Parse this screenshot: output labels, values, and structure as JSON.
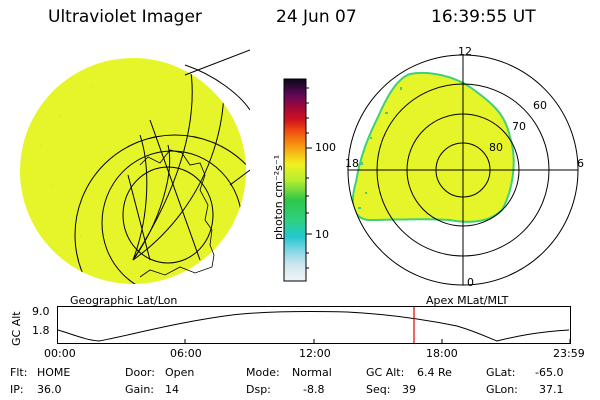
{
  "header": {
    "title": "Ultraviolet Imager",
    "date": "24 Jun 07",
    "time": "16:39:55 UT"
  },
  "colorbar": {
    "label": "photon cm⁻²s⁻¹",
    "ticks": [
      "100",
      "10"
    ]
  },
  "polar": {
    "mlt_labels": {
      "top": "12",
      "left": "18",
      "right": "6",
      "bottom": "0"
    },
    "lat_labels": [
      "60",
      "70",
      "80"
    ]
  },
  "timeline": {
    "left_caption": "Geographic Lat/Lon",
    "right_caption": "Apex MLat/MLT",
    "axis_title": "GC Alt",
    "y_ticks": [
      "9.0",
      "1.8"
    ],
    "x_ticks": [
      "00:00",
      "06:00",
      "12:00",
      "18:00",
      "23:59"
    ],
    "marker_time": "16:39:55"
  },
  "info": {
    "flt": {
      "label": "Flt:",
      "value": "HOME"
    },
    "ip": {
      "label": "IP:",
      "value": "36.0"
    },
    "door": {
      "label": "Door:",
      "value": "Open"
    },
    "gain": {
      "label": "Gain:",
      "value": "14"
    },
    "mode": {
      "label": "Mode:",
      "value": "Normal"
    },
    "dsp": {
      "label": "Dsp:",
      "value": "-8.8"
    },
    "gcalt": {
      "label": "GC Alt:",
      "value": "6.4 Re"
    },
    "seq": {
      "label": "Seq:",
      "value": "39"
    },
    "glat": {
      "label": "GLat:",
      "value": "-65.0"
    },
    "glon": {
      "label": "GLon:",
      "value": "37.1"
    }
  },
  "colors": {
    "emission": "#e6f52a",
    "emission_edge": "#3fd07a",
    "marker": "#e00000"
  }
}
